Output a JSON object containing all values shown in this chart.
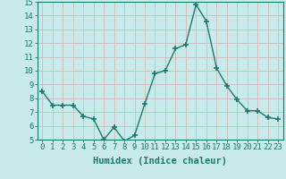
{
  "x": [
    0,
    1,
    2,
    3,
    4,
    5,
    6,
    7,
    8,
    9,
    10,
    11,
    12,
    13,
    14,
    15,
    16,
    17,
    18,
    19,
    20,
    21,
    22,
    23
  ],
  "y": [
    8.5,
    7.5,
    7.5,
    7.5,
    6.7,
    6.5,
    5.0,
    5.9,
    4.9,
    5.3,
    7.6,
    9.8,
    10.0,
    11.6,
    11.9,
    14.8,
    13.6,
    10.2,
    8.9,
    7.9,
    7.1,
    7.1,
    6.6,
    6.5
  ],
  "xlim": [
    -0.5,
    23.5
  ],
  "ylim": [
    5,
    15
  ],
  "yticks": [
    5,
    6,
    7,
    8,
    9,
    10,
    11,
    12,
    13,
    14,
    15
  ],
  "xticks": [
    0,
    1,
    2,
    3,
    4,
    5,
    6,
    7,
    8,
    9,
    10,
    11,
    12,
    13,
    14,
    15,
    16,
    17,
    18,
    19,
    20,
    21,
    22,
    23
  ],
  "xlabel": "Humidex (Indice chaleur)",
  "line_color": "#1a7a6e",
  "marker": "+",
  "marker_size": 4,
  "bg_color": "#c8eaea",
  "grid_color": "#d4b8b8",
  "axis_color": "#1a7a6e",
  "tick_label_color": "#1a7a6e",
  "xlabel_color": "#1a7a6e",
  "xlabel_fontsize": 7.5,
  "tick_fontsize": 6.5
}
